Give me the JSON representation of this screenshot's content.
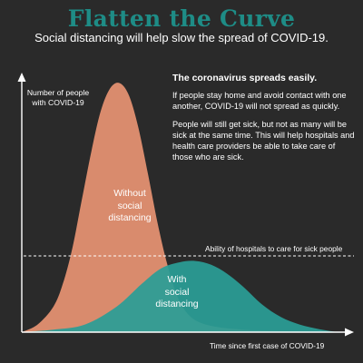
{
  "header": {
    "title": "Flatten the Curve",
    "subtitle": "Social distancing will help slow the spread of COVID-19."
  },
  "info": {
    "heading": "The coronavirus spreads easily.",
    "p1": "If people stay home and avoid contact with one another, COVID-19 will not spread as quickly.",
    "p2": "People will still get sick, but not as many will be sick at the same time. This will help hospitals and health care providers be able to take care of those who are sick."
  },
  "colors": {
    "background": "#2a2a2a",
    "title": "#1e8c86",
    "without_curve": "#d98b6d",
    "with_curve": "#2a9d96",
    "axis": "#ffffff"
  },
  "chart_data": {
    "type": "area",
    "xlabel": "Time since first case of COVID-19",
    "ylabel": "Number of people\nwith COVID-19",
    "grid": false,
    "xlim": [
      0,
      100
    ],
    "ylim": [
      0,
      100
    ],
    "series": [
      {
        "name": "Without\nsocial\ndistancing",
        "color": "#d98b6d",
        "x": [
          0,
          5,
          10,
          13,
          16,
          19,
          22,
          25,
          28,
          31,
          34,
          37,
          40,
          43,
          46,
          49,
          52,
          56,
          62,
          70,
          80,
          90,
          100
        ],
        "values": [
          0,
          3,
          10,
          19,
          33,
          52,
          71,
          87,
          96,
          98,
          93,
          80,
          62,
          43,
          27,
          15,
          8,
          4,
          2,
          1,
          0.5,
          0.2,
          0
        ]
      },
      {
        "name": "With\nsocial\ndistancing",
        "color": "#2a9d96",
        "x": [
          0,
          10,
          20,
          30,
          38,
          44,
          50,
          55,
          60,
          65,
          70,
          76,
          82,
          88,
          94,
          100
        ],
        "values": [
          0,
          1,
          3,
          10,
          19,
          25,
          27.5,
          28,
          26.5,
          23,
          18,
          11,
          6,
          3,
          1.2,
          0
        ]
      }
    ],
    "threshold": {
      "value": 30,
      "label": "Ability of hospitals to care for sick people"
    }
  }
}
